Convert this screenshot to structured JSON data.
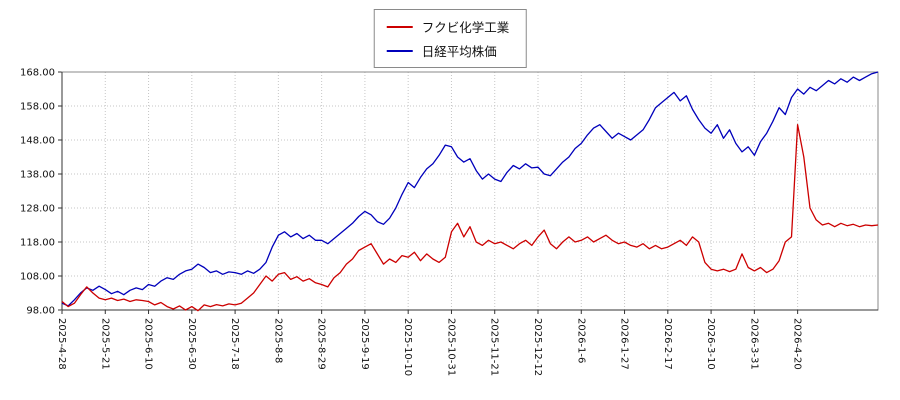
{
  "chart_data": {
    "type": "line",
    "title": "",
    "xlabel": "",
    "ylabel": "",
    "ylim": [
      98,
      168
    ],
    "grid": "dotted",
    "legend_position": "top-center",
    "y_ticks": [
      98,
      108,
      118,
      128,
      138,
      148,
      158,
      168
    ],
    "y_tick_labels": [
      "98.00",
      "108.00",
      "118.00",
      "128.00",
      "138.00",
      "148.00",
      "158.00",
      "168.00"
    ],
    "x_tick_labels": [
      "2025-4-28",
      "2025-5-21",
      "2025-6-10",
      "2025-6-30",
      "2025-7-18",
      "2025-8-8",
      "2025-8-29",
      "2025-9-19",
      "2025-10-10",
      "2025-10-31",
      "2025-11-21",
      "2025-12-12",
      "2026-1-6",
      "2026-1-27",
      "2026-2-17",
      "2026-3-10",
      "2026-3-31",
      "2026-4-20"
    ],
    "points_per_tick": 7,
    "series": [
      {
        "name": "フクビ化学工業",
        "color": "#cc0000",
        "values": [
          100.5,
          99.0,
          100.0,
          102.5,
          104.8,
          103.0,
          101.5,
          101.0,
          101.5,
          100.8,
          101.2,
          100.5,
          101.0,
          100.8,
          100.5,
          99.5,
          100.2,
          99.0,
          98.3,
          99.2,
          98.0,
          99.0,
          97.8,
          99.5,
          99.0,
          99.6,
          99.2,
          99.8,
          99.5,
          100.0,
          101.5,
          103.0,
          105.5,
          108.0,
          106.5,
          108.5,
          109.0,
          107.0,
          107.8,
          106.5,
          107.2,
          106.0,
          105.5,
          104.8,
          107.5,
          109.0,
          111.5,
          113.0,
          115.5,
          116.5,
          117.5,
          114.5,
          111.5,
          113.0,
          112.0,
          114.0,
          113.5,
          115.0,
          112.5,
          114.5,
          113.0,
          112.0,
          113.5,
          121.0,
          123.5,
          119.5,
          122.5,
          118.0,
          117.0,
          118.5,
          117.5,
          118.0,
          117.0,
          116.0,
          117.5,
          118.5,
          117.0,
          119.5,
          121.5,
          117.5,
          116.0,
          118.0,
          119.5,
          118.0,
          118.5,
          119.5,
          118.0,
          119.0,
          120.0,
          118.5,
          117.5,
          118.0,
          117.0,
          116.5,
          117.5,
          116.0,
          117.0,
          116.0,
          116.5,
          117.5,
          118.5,
          117.0,
          119.5,
          118.0,
          112.0,
          110.0,
          109.5,
          110.0,
          109.3,
          110.0,
          114.5,
          110.5,
          109.5,
          110.5,
          109.0,
          110.0,
          112.5,
          118.0,
          119.5,
          152.5,
          143.0,
          128.0,
          124.5,
          123.0,
          123.5,
          122.5,
          123.5,
          122.8,
          123.2,
          122.5,
          123.0,
          122.8,
          123.0
        ]
      },
      {
        "name": "日経平均株価",
        "color": "#0000bb",
        "values": [
          100.0,
          99.2,
          101.0,
          103.0,
          104.5,
          103.8,
          105.0,
          104.0,
          102.8,
          103.5,
          102.5,
          103.8,
          104.5,
          104.0,
          105.5,
          105.0,
          106.5,
          107.5,
          107.0,
          108.5,
          109.5,
          110.0,
          111.5,
          110.5,
          109.0,
          109.5,
          108.5,
          109.2,
          109.0,
          108.5,
          109.5,
          108.8,
          110.0,
          112.0,
          116.5,
          120.0,
          121.0,
          119.5,
          120.5,
          119.0,
          120.0,
          118.5,
          118.5,
          117.5,
          119.0,
          120.5,
          122.0,
          123.5,
          125.5,
          127.0,
          126.0,
          124.0,
          123.2,
          125.0,
          128.0,
          132.0,
          135.5,
          134.0,
          137.0,
          139.5,
          141.0,
          143.5,
          146.5,
          146.0,
          143.0,
          141.5,
          142.5,
          139.0,
          136.5,
          138.0,
          136.5,
          135.8,
          138.5,
          140.5,
          139.5,
          141.0,
          139.8,
          140.0,
          138.0,
          137.5,
          139.5,
          141.5,
          143.0,
          145.5,
          147.0,
          149.5,
          151.5,
          152.5,
          150.5,
          148.5,
          150.0,
          149.0,
          148.0,
          149.5,
          151.0,
          154.0,
          157.5,
          159.0,
          160.5,
          162.0,
          159.5,
          161.0,
          157.0,
          154.0,
          151.5,
          150.0,
          152.5,
          148.5,
          151.0,
          147.0,
          144.5,
          146.0,
          143.5,
          147.5,
          150.0,
          153.5,
          157.5,
          155.5,
          160.5,
          163.0,
          161.5,
          163.5,
          162.5,
          164.0,
          165.5,
          164.5,
          166.0,
          165.0,
          166.5,
          165.5,
          166.5,
          167.5,
          168.0
        ]
      }
    ]
  }
}
